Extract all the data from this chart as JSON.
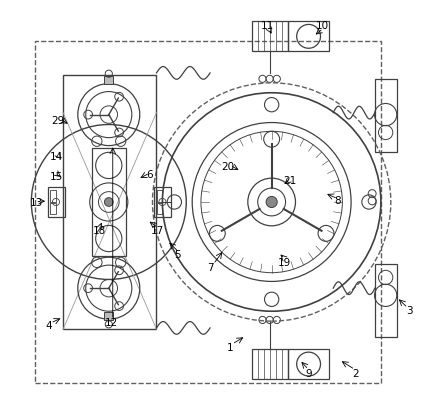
{
  "bg_color": "#ffffff",
  "line_color": "#404040",
  "dashed_color": "#606060"
}
